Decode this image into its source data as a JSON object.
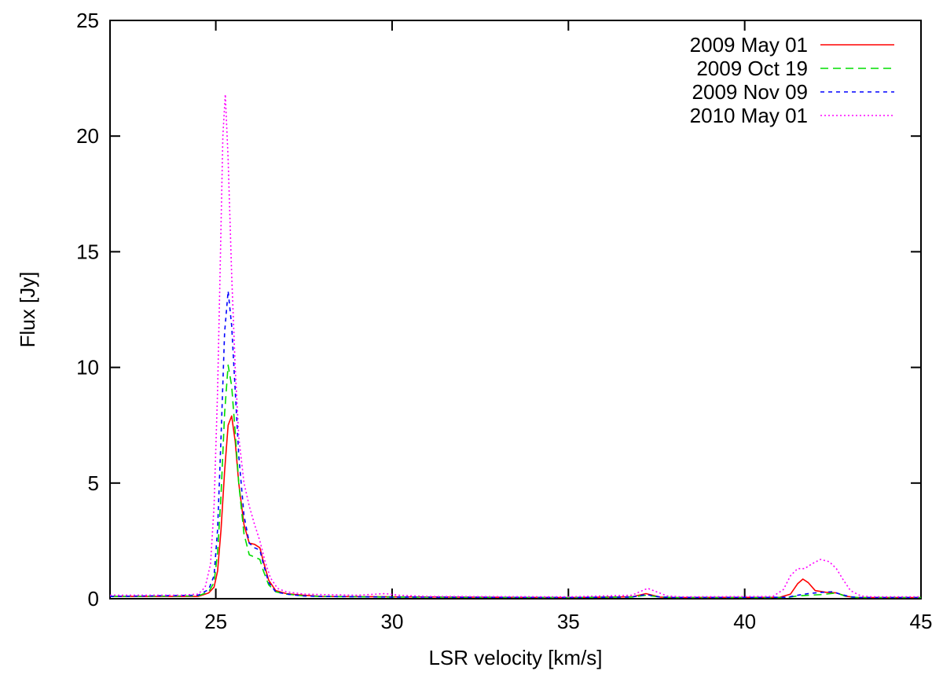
{
  "chart_data": {
    "type": "line",
    "title": "",
    "xlabel": "LSR velocity [km/s]",
    "ylabel": "Flux [Jy]",
    "xlim": [
      22,
      45
    ],
    "ylim": [
      0,
      25
    ],
    "xticks": [
      25,
      30,
      35,
      40,
      45
    ],
    "yticks": [
      0,
      5,
      10,
      15,
      20,
      25
    ],
    "grid": false,
    "legend_position": "top-right",
    "series": [
      {
        "name": "2009 May 01",
        "color": "#ff0000",
        "dash": "solid",
        "points": [
          [
            22,
            0.1
          ],
          [
            24.5,
            0.1
          ],
          [
            24.8,
            0.25
          ],
          [
            24.95,
            0.5
          ],
          [
            25.05,
            1.2
          ],
          [
            25.15,
            3.0
          ],
          [
            25.25,
            5.5
          ],
          [
            25.35,
            7.5
          ],
          [
            25.45,
            7.9
          ],
          [
            25.55,
            6.8
          ],
          [
            25.65,
            5.0
          ],
          [
            25.8,
            3.2
          ],
          [
            25.95,
            2.4
          ],
          [
            26.1,
            2.35
          ],
          [
            26.25,
            2.2
          ],
          [
            26.35,
            1.6
          ],
          [
            26.5,
            0.8
          ],
          [
            26.7,
            0.35
          ],
          [
            27,
            0.22
          ],
          [
            27.5,
            0.15
          ],
          [
            28,
            0.1
          ],
          [
            30,
            0.08
          ],
          [
            35,
            0.05
          ],
          [
            36.8,
            0.08
          ],
          [
            37.2,
            0.22
          ],
          [
            37.6,
            0.07
          ],
          [
            38,
            0.05
          ],
          [
            41,
            0.06
          ],
          [
            41.3,
            0.2
          ],
          [
            41.5,
            0.65
          ],
          [
            41.65,
            0.85
          ],
          [
            41.8,
            0.7
          ],
          [
            42,
            0.35
          ],
          [
            42.3,
            0.28
          ],
          [
            42.6,
            0.25
          ],
          [
            42.9,
            0.1
          ],
          [
            43.2,
            0.05
          ],
          [
            45,
            0.05
          ]
        ]
      },
      {
        "name": "2009 Oct 19",
        "color": "#00dd00",
        "dash": "dashed",
        "points": [
          [
            22,
            0.1
          ],
          [
            24.5,
            0.12
          ],
          [
            24.8,
            0.3
          ],
          [
            24.95,
            0.7
          ],
          [
            25.05,
            2.0
          ],
          [
            25.15,
            4.5
          ],
          [
            25.25,
            8.0
          ],
          [
            25.35,
            10.1
          ],
          [
            25.45,
            9.2
          ],
          [
            25.55,
            7.2
          ],
          [
            25.65,
            5.0
          ],
          [
            25.8,
            2.8
          ],
          [
            25.95,
            1.9
          ],
          [
            26.1,
            1.8
          ],
          [
            26.25,
            1.7
          ],
          [
            26.35,
            1.2
          ],
          [
            26.5,
            0.6
          ],
          [
            26.7,
            0.3
          ],
          [
            27,
            0.2
          ],
          [
            27.5,
            0.12
          ],
          [
            28,
            0.1
          ],
          [
            30,
            0.07
          ],
          [
            35,
            0.05
          ],
          [
            36.8,
            0.07
          ],
          [
            37.2,
            0.15
          ],
          [
            37.6,
            0.07
          ],
          [
            38,
            0.05
          ],
          [
            41.2,
            0.05
          ],
          [
            41.5,
            0.12
          ],
          [
            41.8,
            0.15
          ],
          [
            42.2,
            0.18
          ],
          [
            42.6,
            0.25
          ],
          [
            42.9,
            0.08
          ],
          [
            43.2,
            0.05
          ],
          [
            45,
            0.05
          ]
        ]
      },
      {
        "name": "2009 Nov 09",
        "color": "#0000ff",
        "dash": "dotted",
        "points": [
          [
            22,
            0.1
          ],
          [
            24.5,
            0.15
          ],
          [
            24.8,
            0.4
          ],
          [
            24.95,
            1.0
          ],
          [
            25.05,
            3.0
          ],
          [
            25.15,
            7.0
          ],
          [
            25.25,
            11.5
          ],
          [
            25.35,
            13.3
          ],
          [
            25.45,
            11.8
          ],
          [
            25.55,
            9.0
          ],
          [
            25.65,
            6.2
          ],
          [
            25.8,
            3.6
          ],
          [
            25.95,
            2.4
          ],
          [
            26.1,
            2.2
          ],
          [
            26.25,
            2.1
          ],
          [
            26.35,
            1.5
          ],
          [
            26.5,
            0.7
          ],
          [
            26.7,
            0.3
          ],
          [
            27,
            0.2
          ],
          [
            27.5,
            0.12
          ],
          [
            28,
            0.1
          ],
          [
            30,
            0.07
          ],
          [
            35,
            0.05
          ],
          [
            36.8,
            0.07
          ],
          [
            37.2,
            0.18
          ],
          [
            37.6,
            0.07
          ],
          [
            38,
            0.05
          ],
          [
            41.2,
            0.06
          ],
          [
            41.5,
            0.15
          ],
          [
            41.8,
            0.22
          ],
          [
            42.2,
            0.28
          ],
          [
            42.5,
            0.3
          ],
          [
            42.7,
            0.2
          ],
          [
            43,
            0.08
          ],
          [
            43.3,
            0.05
          ],
          [
            45,
            0.05
          ]
        ]
      },
      {
        "name": "2010 May 01",
        "color": "#ff00ff",
        "dash": "fine-dotted",
        "points": [
          [
            22,
            0.15
          ],
          [
            24,
            0.15
          ],
          [
            24.5,
            0.2
          ],
          [
            24.7,
            0.5
          ],
          [
            24.85,
            1.5
          ],
          [
            24.95,
            4.0
          ],
          [
            25.05,
            9.0
          ],
          [
            25.12,
            14.0
          ],
          [
            25.2,
            20.0
          ],
          [
            25.27,
            21.8
          ],
          [
            25.35,
            19.0
          ],
          [
            25.45,
            14.0
          ],
          [
            25.55,
            10.0
          ],
          [
            25.65,
            7.0
          ],
          [
            25.8,
            5.0
          ],
          [
            25.95,
            4.0
          ],
          [
            26.1,
            3.2
          ],
          [
            26.25,
            2.5
          ],
          [
            26.4,
            1.6
          ],
          [
            26.55,
            0.9
          ],
          [
            26.75,
            0.45
          ],
          [
            27,
            0.3
          ],
          [
            27.5,
            0.2
          ],
          [
            28,
            0.18
          ],
          [
            29,
            0.15
          ],
          [
            29.8,
            0.22
          ],
          [
            30.2,
            0.15
          ],
          [
            31,
            0.1
          ],
          [
            35,
            0.08
          ],
          [
            36.8,
            0.15
          ],
          [
            37.1,
            0.35
          ],
          [
            37.25,
            0.45
          ],
          [
            37.5,
            0.3
          ],
          [
            37.8,
            0.12
          ],
          [
            38.2,
            0.08
          ],
          [
            40.8,
            0.1
          ],
          [
            41.1,
            0.4
          ],
          [
            41.3,
            1.0
          ],
          [
            41.5,
            1.3
          ],
          [
            41.7,
            1.3
          ],
          [
            41.9,
            1.5
          ],
          [
            42.15,
            1.7
          ],
          [
            42.4,
            1.6
          ],
          [
            42.6,
            1.3
          ],
          [
            42.8,
            0.8
          ],
          [
            43,
            0.35
          ],
          [
            43.3,
            0.12
          ],
          [
            43.6,
            0.08
          ],
          [
            45,
            0.08
          ]
        ]
      }
    ]
  }
}
